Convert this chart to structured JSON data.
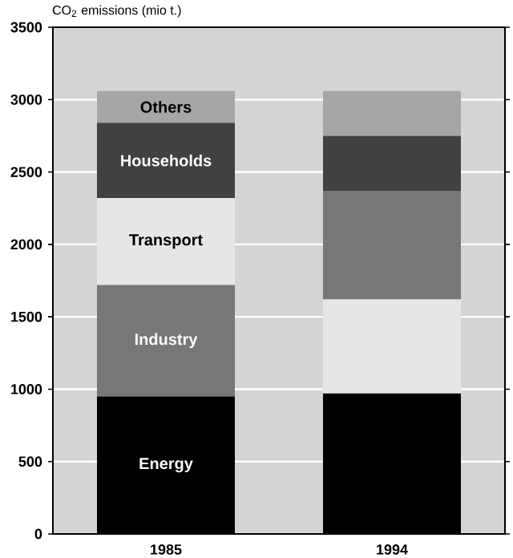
{
  "chart_data": {
    "type": "bar",
    "stacked": true,
    "ylabel": "CO$_{2}$ emissions (mio t.)",
    "categories": [
      "1985",
      "1994"
    ],
    "ylim": [
      0,
      3500
    ],
    "yticks": [
      0,
      500,
      1000,
      1500,
      2000,
      2500,
      3000,
      3500
    ],
    "grid": "y",
    "series": [
      {
        "name": "Energy",
        "color": "#000000",
        "values": [
          950,
          970
        ]
      },
      {
        "name": "Industry",
        "colors": [
          "#777777",
          "#e6e6e6"
        ],
        "values": [
          770,
          650
        ]
      },
      {
        "name": "Transport",
        "colors": [
          "#e6e6e6",
          "#777777"
        ],
        "values": [
          600,
          750
        ]
      },
      {
        "name": "Households",
        "color": "#414141",
        "values": [
          520,
          380
        ]
      },
      {
        "name": "Others",
        "color": "#a6a6a6",
        "values": [
          220,
          310
        ]
      }
    ]
  }
}
